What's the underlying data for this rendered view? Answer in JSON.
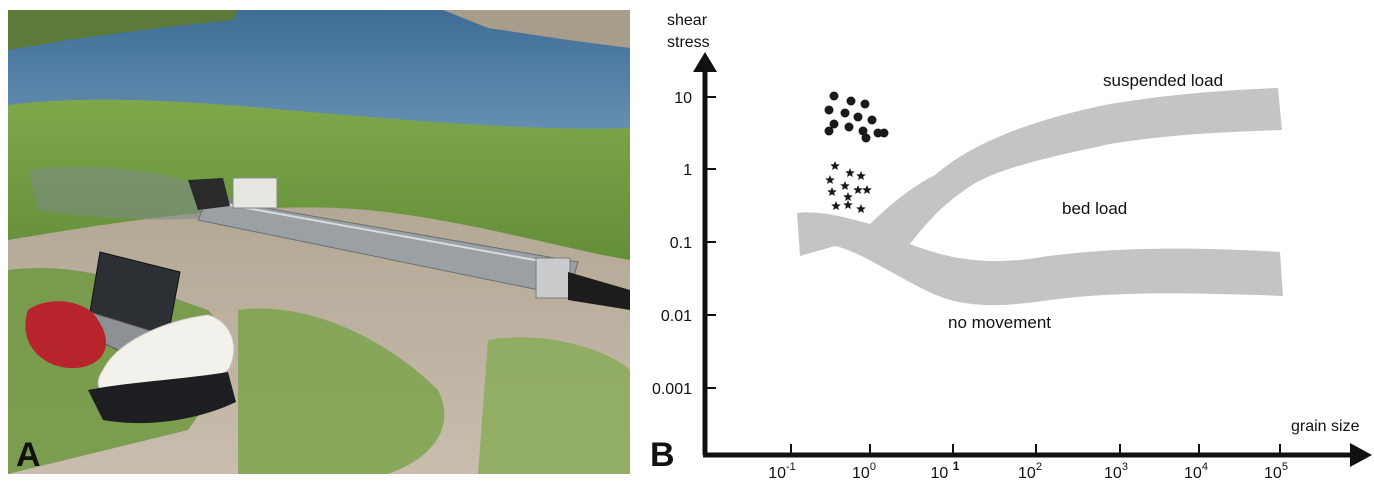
{
  "panel_a": {
    "letter": "A"
  },
  "panel_b": {
    "letter": "B"
  },
  "diagram": {
    "y_axis_label_line1": "shear",
    "y_axis_label_line2": "stress",
    "x_axis_label": "grain size",
    "y_ticks": [
      "10",
      "1",
      "0.1",
      "0.01",
      "0.001"
    ],
    "x_ticks": [
      {
        "base": "10",
        "exp": "-1"
      },
      {
        "base": "10",
        "exp": "0"
      },
      {
        "base": "10 ",
        "exp": "1"
      },
      {
        "base": "10",
        "exp": "2"
      },
      {
        "base": "10",
        "exp": "3"
      },
      {
        "base": "10",
        "exp": "4"
      },
      {
        "base": "10",
        "exp": "5"
      }
    ],
    "region_labels": {
      "suspended": "suspended load",
      "bed": "bed load",
      "none": "no movement"
    },
    "colors": {
      "band": "#c4c4c4",
      "axis": "#111111",
      "markers": "#1a1a1a"
    }
  }
}
